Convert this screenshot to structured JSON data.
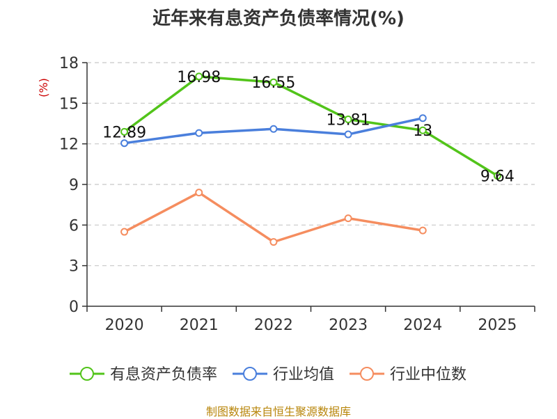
{
  "footer": {
    "source": "制图数据来自恒生聚源数据库"
  },
  "chart_data": {
    "type": "line",
    "title": "近年来有息资产负债率情况(%)",
    "ylabel": "(%)",
    "xlabel": "",
    "categories": [
      "2020",
      "2021",
      "2022",
      "2023",
      "2024",
      "2025"
    ],
    "ylim": [
      0,
      18
    ],
    "yticks": [
      0,
      3,
      6,
      9,
      12,
      15,
      18
    ],
    "grid": true,
    "legend_position": "bottom",
    "series": [
      {
        "name": "有息资产负债率",
        "color": "#52c41a",
        "values": [
          12.89,
          16.98,
          16.55,
          13.81,
          13,
          9.64
        ],
        "labels": [
          "12.89",
          "16.98",
          "16.55",
          "13.81",
          "13",
          "9.64"
        ]
      },
      {
        "name": "行业均值",
        "color": "#4a7fdc",
        "values": [
          12.05,
          12.8,
          13.1,
          12.7,
          13.9,
          null
        ]
      },
      {
        "name": "行业中位数",
        "color": "#f58d5f",
        "values": [
          5.5,
          8.4,
          4.75,
          6.5,
          5.6,
          null
        ]
      }
    ]
  }
}
